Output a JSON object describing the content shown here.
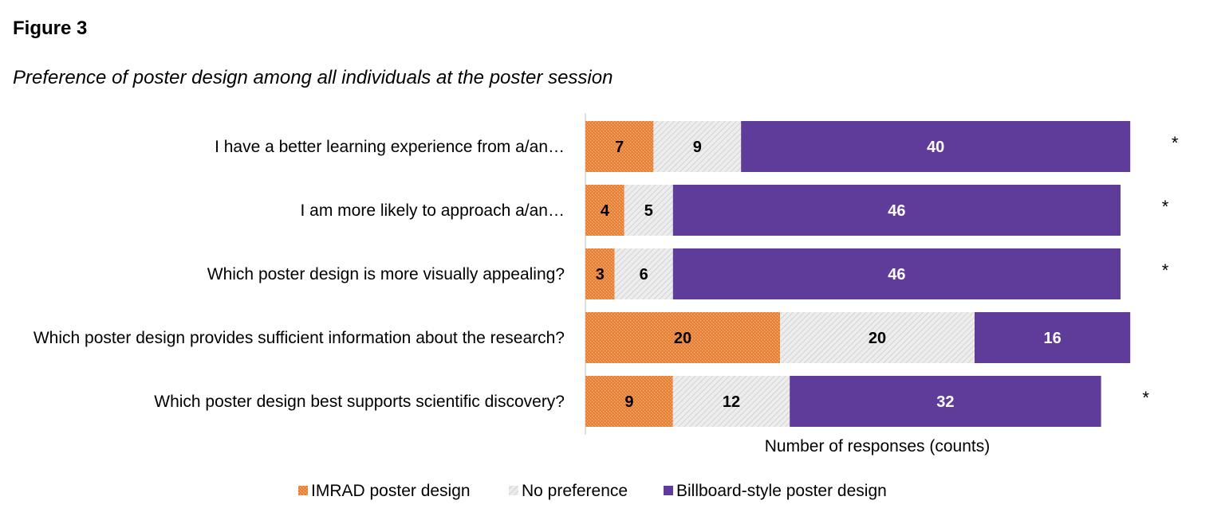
{
  "figure_label": "Figure 3",
  "chart_data": {
    "type": "bar",
    "orientation": "horizontal",
    "stacked": true,
    "title": "Preference of poster design among all individuals at the poster session",
    "xlabel": "Number of responses (counts)",
    "ylabel": "",
    "categories": [
      "I have a better learning experience from a/an…",
      "I am more likely to approach a/an…",
      "Which poster design is more visually appealing?",
      "Which poster design provides sufficient information about the research?",
      "Which poster design best supports scientific discovery?"
    ],
    "series": [
      {
        "name": "IMRAD poster design",
        "values": [
          7,
          4,
          3,
          20,
          9
        ],
        "color": "#ed7d31",
        "pattern": "dotted"
      },
      {
        "name": "No preference",
        "values": [
          9,
          5,
          6,
          20,
          12
        ],
        "color": "#e6e6e6",
        "pattern": "hatched"
      },
      {
        "name": "Billboard-style poster design",
        "values": [
          40,
          46,
          46,
          16,
          32
        ],
        "color": "#5f3b9a",
        "pattern": "solid"
      }
    ],
    "significance_marker": "*",
    "significant": [
      true,
      true,
      true,
      false,
      true
    ],
    "legend_position": "bottom",
    "grid": false,
    "xaxis_visible": false
  }
}
